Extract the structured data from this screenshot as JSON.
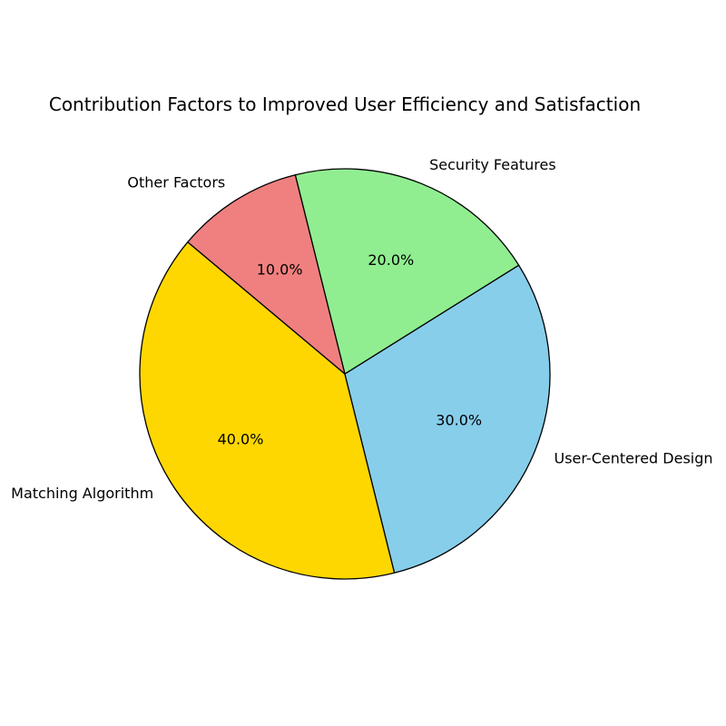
{
  "chart_data": {
    "type": "pie",
    "title": "Contribution Factors to Improved User Efficiency and Satisfaction",
    "categories": [
      "Matching Algorithm",
      "User-Centered Design",
      "Security Features",
      "Other Factors"
    ],
    "values": [
      40,
      30,
      20,
      10
    ],
    "percent_labels": [
      "40.0%",
      "30.0%",
      "20.0%",
      "10.0%"
    ],
    "colors": [
      "#FFD700",
      "#87CEEB",
      "#90EE90",
      "#F08080"
    ],
    "edge_color": "#000000",
    "start_angle_deg": 140,
    "direction": "counterclockwise"
  }
}
